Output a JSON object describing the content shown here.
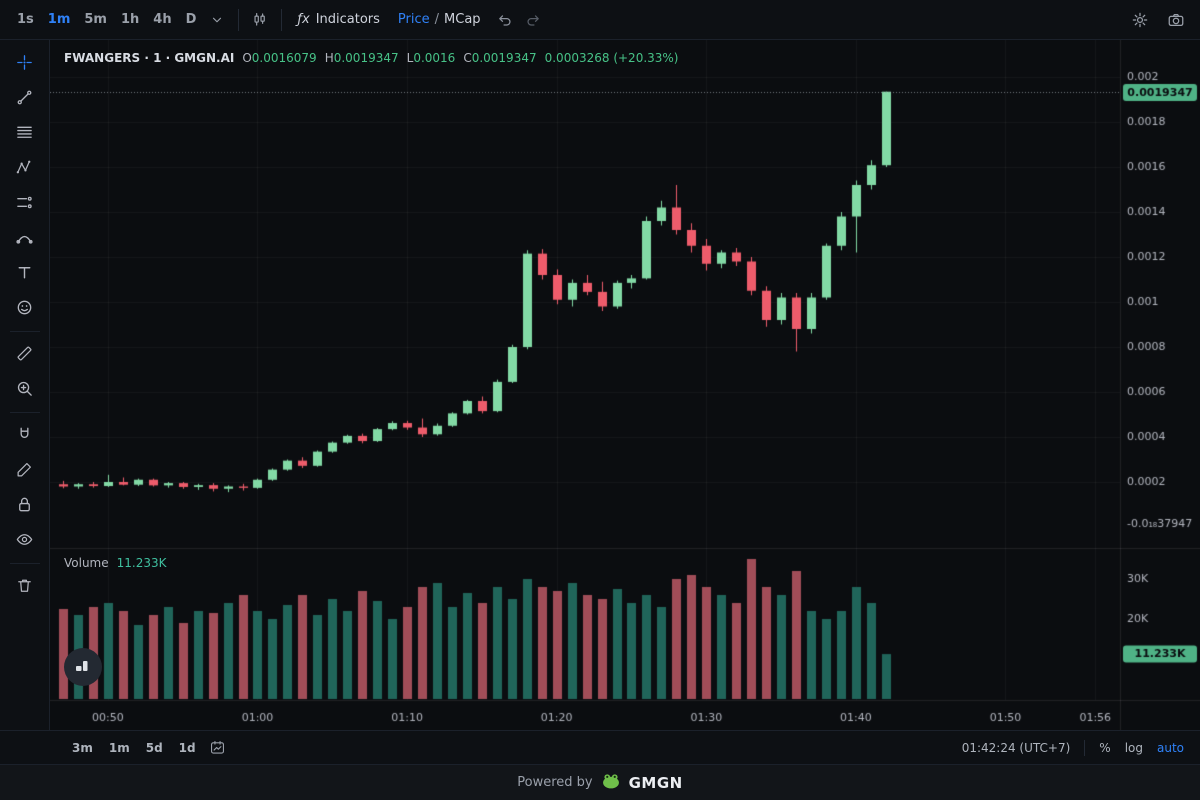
{
  "topbar": {
    "timeframes": [
      {
        "label": "1s",
        "active": false
      },
      {
        "label": "1m",
        "active": true
      },
      {
        "label": "5m",
        "active": false
      },
      {
        "label": "1h",
        "active": false
      },
      {
        "label": "4h",
        "active": false
      },
      {
        "label": "D",
        "active": false
      }
    ],
    "fx": "ƒx",
    "indicators_label": "Indicators",
    "price_label": "Price",
    "divider": "/",
    "mcap_label": "MCap"
  },
  "sidebar": {
    "tools": [
      "crosshair",
      "trend-line",
      "fib-retracement",
      "xabcd-pattern",
      "projection",
      "curve",
      "text",
      "emoji",
      "ruler",
      "zoom-in",
      "magnet",
      "draw",
      "lock",
      "eye",
      "trash"
    ]
  },
  "legend": {
    "title": "FWANGERS · 1 · GMGN.AI",
    "o_label": "O",
    "o": "0.0016079",
    "h_label": "H",
    "h": "0.0019347",
    "l_label": "L",
    "l": "0.0016",
    "c_label": "C",
    "c": "0.0019347",
    "change": "0.0003268 (+20.33%)"
  },
  "volume_legend": {
    "label": "Volume",
    "value": "11.233K"
  },
  "bottom_toolbar": {
    "ranges": [
      "3m",
      "1m",
      "5d",
      "1d"
    ],
    "clock": "01:42:24 (UTC+7)",
    "percent": "%",
    "log": "log",
    "auto": "auto"
  },
  "footer": {
    "powered_by": "Powered by",
    "brand": "GMGN"
  },
  "colors": {
    "chart_bg": "#0b0d10",
    "grid": "rgba(255,255,255,0.045)",
    "divider": "rgba(255,255,255,0.09)",
    "axis_text": "#b2b5be",
    "up": "#82d9a5",
    "down": "#ee5c6b",
    "vol_up": "#20655a",
    "vol_down": "#a14d58",
    "price_line": "rgba(205,215,220,0.55)",
    "badge_bg": "#4fb286",
    "badge_text": "#0b0d10",
    "accent": "#2f81f7"
  },
  "chart_data": {
    "type": "candlestick",
    "symbol": "FWANGERS",
    "interval": "1",
    "venue": "GMGN.AI",
    "last_price": {
      "label": "0.0019347",
      "value": 0.0019347
    },
    "last_volume": {
      "label": "11.233K",
      "value": 11.233
    },
    "time_start": "00:47",
    "step_minutes": 1,
    "time_ticks": [
      "00:50",
      "01:00",
      "01:10",
      "01:20",
      "01:30",
      "01:40",
      "01:50",
      "01:56"
    ],
    "price_ticks": [
      {
        "label": "0.002",
        "value": 0.002
      },
      {
        "label": "0.0018",
        "value": 0.0018
      },
      {
        "label": "0.0016",
        "value": 0.0016
      },
      {
        "label": "0.0014",
        "value": 0.0014
      },
      {
        "label": "0.0012",
        "value": 0.0012
      },
      {
        "label": "0.001",
        "value": 0.001
      },
      {
        "label": "0.0008",
        "value": 0.0008
      },
      {
        "label": "0.0006",
        "value": 0.0006
      },
      {
        "label": "0.0004",
        "value": 0.0004
      },
      {
        "label": "0.0002",
        "value": 0.0002
      },
      {
        "label": "-0.0₁₈37947",
        "value": 1.33e-05,
        "grid": false
      }
    ],
    "volume_ticks": [
      {
        "label": "30K",
        "value": 30
      },
      {
        "label": "20K",
        "value": 20
      }
    ],
    "candles": [
      [
        0.00019,
        0.000205,
        0.000172,
        0.00018
      ],
      [
        0.00018,
        0.000195,
        0.00017,
        0.00019
      ],
      [
        0.00019,
        0.0002,
        0.000175,
        0.000182
      ],
      [
        0.000182,
        0.000232,
        0.000178,
        0.0002
      ],
      [
        0.0002,
        0.00022,
        0.000185,
        0.000188
      ],
      [
        0.000188,
        0.000215,
        0.000182,
        0.00021
      ],
      [
        0.00021,
        0.000215,
        0.00018,
        0.000185
      ],
      [
        0.000185,
        0.0002,
        0.000175,
        0.000195
      ],
      [
        0.000195,
        0.0002,
        0.00017,
        0.000178
      ],
      [
        0.000178,
        0.000192,
        0.000165,
        0.000186
      ],
      [
        0.000186,
        0.000195,
        0.000158,
        0.00017
      ],
      [
        0.00017,
        0.000185,
        0.000155,
        0.00018
      ],
      [
        0.00018,
        0.000192,
        0.000162,
        0.000174
      ],
      [
        0.000174,
        0.000215,
        0.00017,
        0.00021
      ],
      [
        0.00021,
        0.00026,
        0.000205,
        0.000255
      ],
      [
        0.000255,
        0.0003,
        0.00025,
        0.000295
      ],
      [
        0.000295,
        0.00031,
        0.000262,
        0.000272
      ],
      [
        0.000272,
        0.00034,
        0.000268,
        0.000335
      ],
      [
        0.000335,
        0.00038,
        0.00033,
        0.000375
      ],
      [
        0.000375,
        0.00041,
        0.00037,
        0.000405
      ],
      [
        0.000405,
        0.000415,
        0.000372,
        0.000382
      ],
      [
        0.000382,
        0.00044,
        0.000378,
        0.000435
      ],
      [
        0.000435,
        0.00047,
        0.00043,
        0.000462
      ],
      [
        0.000462,
        0.000472,
        0.000432,
        0.000442
      ],
      [
        0.000442,
        0.000482,
        0.0004,
        0.000412
      ],
      [
        0.000412,
        0.00046,
        0.000406,
        0.00045
      ],
      [
        0.00045,
        0.00051,
        0.000445,
        0.000505
      ],
      [
        0.000505,
        0.000565,
        0.0005,
        0.00056
      ],
      [
        0.00056,
        0.00058,
        0.000505,
        0.000515
      ],
      [
        0.000515,
        0.000655,
        0.00051,
        0.000645
      ],
      [
        0.000645,
        0.00081,
        0.00064,
        0.0008
      ],
      [
        0.0008,
        0.00123,
        0.00079,
        0.001215
      ],
      [
        0.001215,
        0.001235,
        0.0011,
        0.00112
      ],
      [
        0.00112,
        0.001145,
        0.00099,
        0.00101
      ],
      [
        0.00101,
        0.0011,
        0.00098,
        0.001085
      ],
      [
        0.001085,
        0.00112,
        0.00103,
        0.001045
      ],
      [
        0.001045,
        0.00109,
        0.00096,
        0.00098
      ],
      [
        0.00098,
        0.001095,
        0.00097,
        0.001085
      ],
      [
        0.001085,
        0.00112,
        0.00106,
        0.001105
      ],
      [
        0.001105,
        0.00138,
        0.0011,
        0.00136
      ],
      [
        0.00136,
        0.00145,
        0.00134,
        0.00142
      ],
      [
        0.00142,
        0.00152,
        0.0013,
        0.00132
      ],
      [
        0.00132,
        0.00135,
        0.00122,
        0.00125
      ],
      [
        0.00125,
        0.00128,
        0.00114,
        0.00117
      ],
      [
        0.00117,
        0.00123,
        0.00115,
        0.00122
      ],
      [
        0.00122,
        0.00124,
        0.00116,
        0.00118
      ],
      [
        0.00118,
        0.0012,
        0.00103,
        0.00105
      ],
      [
        0.00105,
        0.00107,
        0.00089,
        0.00092
      ],
      [
        0.00092,
        0.00104,
        0.0009,
        0.00102
      ],
      [
        0.00102,
        0.00104,
        0.00078,
        0.00088
      ],
      [
        0.00088,
        0.00104,
        0.00086,
        0.00102
      ],
      [
        0.00102,
        0.00126,
        0.00101,
        0.00125
      ],
      [
        0.00125,
        0.0014,
        0.00123,
        0.00138
      ],
      [
        0.00138,
        0.00154,
        0.00122,
        0.00152
      ],
      [
        0.00152,
        0.00163,
        0.0015,
        0.0016079
      ],
      [
        0.0016079,
        0.0019347,
        0.0016,
        0.0019347
      ]
    ],
    "volumes_k": [
      22.5,
      21,
      23,
      24,
      22,
      18.5,
      21,
      23,
      19,
      22,
      21.5,
      24,
      26,
      22,
      20,
      23.5,
      26,
      21,
      25,
      22,
      27,
      24.5,
      20,
      23,
      28,
      29,
      23,
      26.5,
      24,
      28,
      25,
      30,
      28,
      27,
      29,
      26,
      25,
      27.5,
      24,
      26,
      23,
      30,
      31,
      28,
      26,
      24,
      35,
      28,
      26,
      32,
      22,
      20,
      22,
      28,
      24,
      11.233
    ]
  }
}
